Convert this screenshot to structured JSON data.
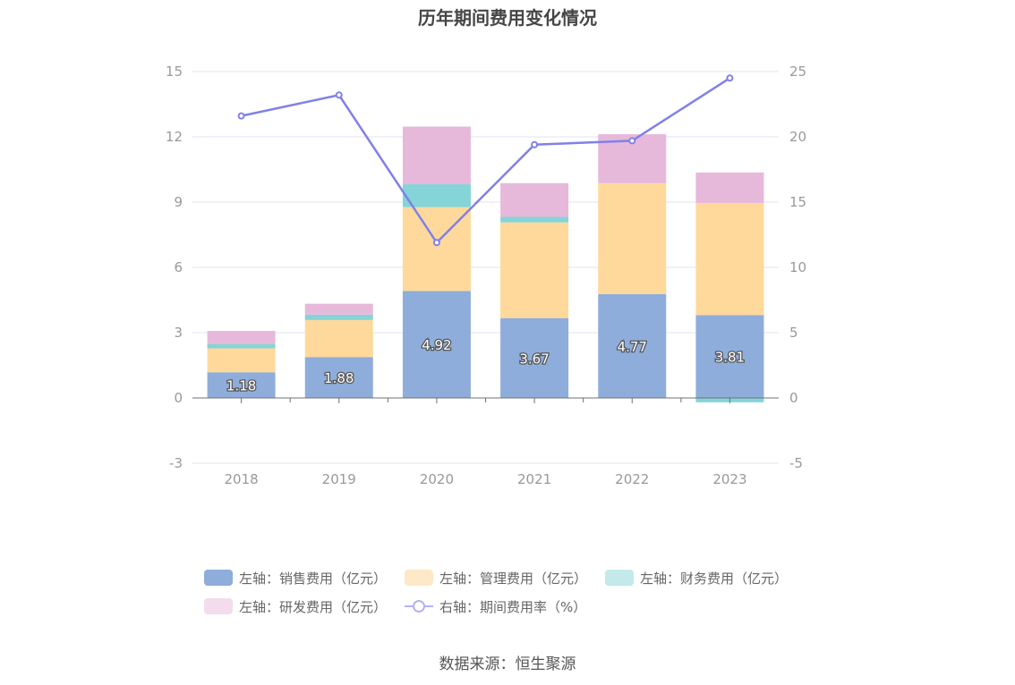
{
  "title": "历年期间费用变化情况",
  "source": "数据来源：恒生聚源",
  "chart_data": {
    "type": "bar",
    "stacked": true,
    "categories": [
      "2018",
      "2019",
      "2020",
      "2021",
      "2022",
      "2023"
    ],
    "series": [
      {
        "name": "左轴：销售费用（亿元）",
        "axis": "left",
        "color": "#8eadda",
        "legend_color": "#8eadda",
        "values": [
          1.18,
          1.88,
          4.92,
          3.67,
          4.77,
          3.81
        ],
        "labels": [
          "1.18",
          "1.88",
          "4.92",
          "3.67",
          "4.77",
          "3.81"
        ]
      },
      {
        "name": "左轴：管理费用（亿元）",
        "axis": "left",
        "color": "#ffd99b",
        "legend_color": "#fde8c8",
        "values": [
          1.1,
          1.7,
          3.85,
          4.4,
          5.1,
          5.15
        ]
      },
      {
        "name": "左轴：财务费用（亿元）",
        "axis": "left",
        "color": "#84d4d8",
        "legend_color": "#c3e9ea",
        "values": [
          0.2,
          0.25,
          1.05,
          0.25,
          0.0,
          -0.2
        ]
      },
      {
        "name": "左轴：研发费用（亿元）",
        "axis": "left",
        "color": "#e6b9da",
        "legend_color": "#f3dced",
        "values": [
          0.6,
          0.5,
          2.65,
          1.55,
          2.25,
          1.4
        ]
      },
      {
        "name": "右轴：期间费用率（%）",
        "axis": "right",
        "type": "line",
        "color": "#8080ea",
        "values": [
          21.6,
          23.2,
          11.9,
          19.4,
          19.7,
          24.5
        ]
      }
    ],
    "y_left": {
      "min": -3,
      "max": 15,
      "ticks": [
        "-3",
        "0",
        "3",
        "6",
        "9",
        "12",
        "15"
      ]
    },
    "y_right": {
      "min": -5,
      "max": 25,
      "ticks": [
        "-5",
        "0",
        "5",
        "10",
        "15",
        "20",
        "25"
      ]
    },
    "grid": true,
    "legend_position": "bottom"
  }
}
